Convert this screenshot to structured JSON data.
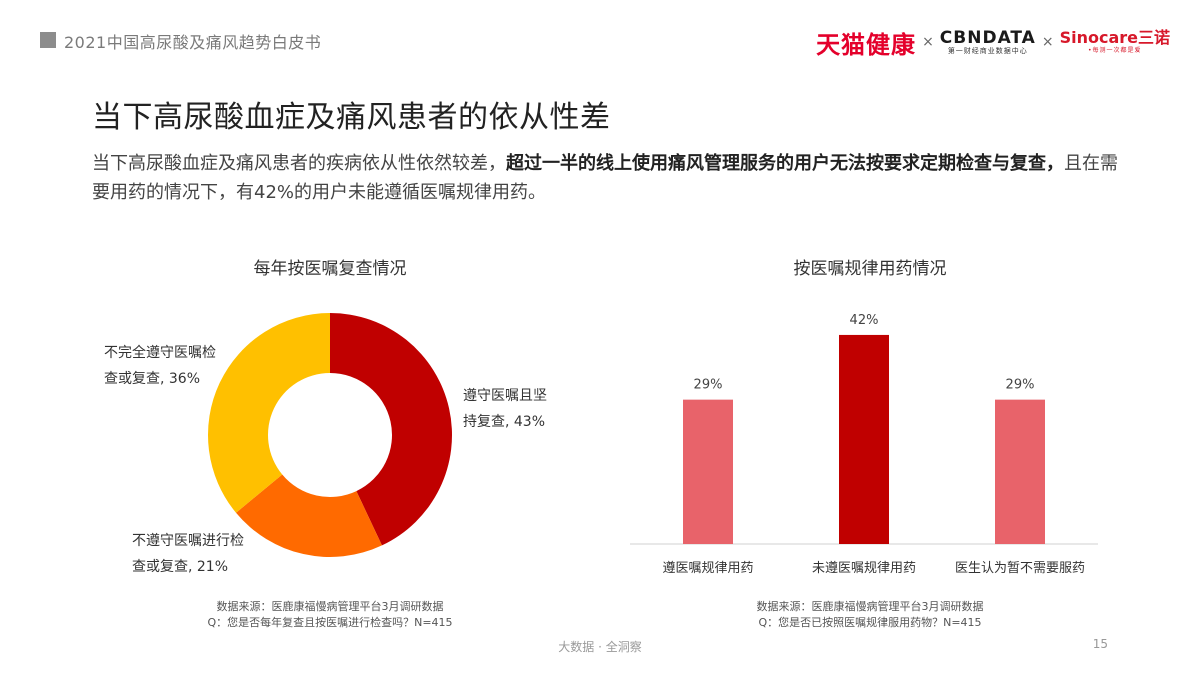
{
  "header": {
    "title": "2021中国高尿酸及痛风趋势白皮书",
    "logos": {
      "tmall": "天猫健康",
      "cbn_main": "CBNDATA",
      "cbn_sub": "第一财经商业数据中心",
      "sino_main": "Sinocare三诺",
      "sino_sub": "•每测一次都是爱",
      "separator": "×"
    }
  },
  "page_title": "当下高尿酸血症及痛风患者的依从性差",
  "intro": {
    "part1": "当下高尿酸血症及痛风患者的疾病依从性依然较差，",
    "bold": "超过一半的线上使用痛风管理服务的用户无法按要求定期检查与复查，",
    "part2": "且在需要用药的情况下，有42%的用户未能遵循医嘱规律用药。"
  },
  "chart_data": [
    {
      "type": "pie",
      "title": "每年按医嘱复查情况",
      "slices": [
        {
          "label_line1": "遵守医嘱且坚",
          "label_line2": "持复查, 43%",
          "value": 43,
          "color": "#c00000"
        },
        {
          "label_line1": "不遵守医嘱进行检",
          "label_line2": "查或复查, 21%",
          "value": 21,
          "color": "#ff6a00"
        },
        {
          "label_line1": "不完全遵守医嘱检",
          "label_line2": "查或复查, 36%",
          "value": 36,
          "color": "#ffc000"
        }
      ],
      "source_line1": "数据来源：医鹿康福慢病管理平台3月调研数据",
      "source_line2": "Q：您是否每年复查且按医嘱进行检查吗？N=415"
    },
    {
      "type": "bar",
      "title": "按医嘱规律用药情况",
      "categories": [
        "遵医嘱规律用药",
        "未遵医嘱规律用药",
        "医生认为暂不需要服药"
      ],
      "values": [
        29,
        42,
        29
      ],
      "value_labels": [
        "29%",
        "42%",
        "29%"
      ],
      "colors": [
        "#e8636a",
        "#c00000",
        "#e8636a"
      ],
      "ylim": [
        0,
        45
      ],
      "source_line1": "数据来源：医鹿康福慢病管理平台3月调研数据",
      "source_line2": "Q：您是否已按照医嘱规律服用药物？N=415"
    }
  ],
  "footer": {
    "text": "大数据 · 全洞察",
    "page_number": "15"
  }
}
